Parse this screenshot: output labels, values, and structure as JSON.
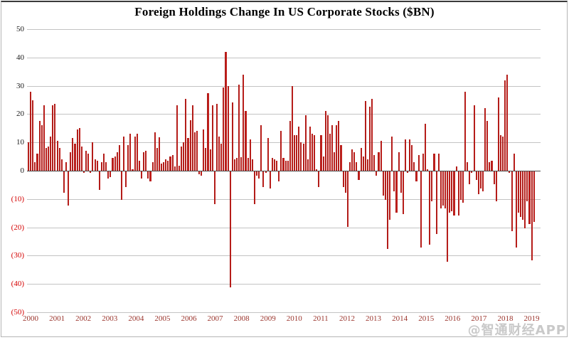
{
  "title": "Foreign Holdings Change In US Corporate Stocks ($BN)",
  "watermark": "@智通财经APP",
  "colors": {
    "bar": "#c1201d",
    "bar_edge": "#8e1310",
    "grid": "#c3c3c3",
    "zero_axis": "#4a4a4a",
    "tick_positive": "#1a1a1a",
    "tick_negative": "#d40000",
    "year_label": "#9a342c",
    "watermark": "#c4c4c4",
    "title": "#000000",
    "background": "#ffffff"
  },
  "y_axis": {
    "ticks": [
      {
        "label": "50",
        "value": 50
      },
      {
        "label": "40",
        "value": 40
      },
      {
        "label": "30",
        "value": 30
      },
      {
        "label": "20",
        "value": 20
      },
      {
        "label": "10",
        "value": 10
      },
      {
        "label": "0",
        "value": 0
      },
      {
        "label": "(10)",
        "value": -10
      },
      {
        "label": "(20)",
        "value": -20
      },
      {
        "label": "(30)",
        "value": -30
      },
      {
        "label": "(40)",
        "value": -40
      },
      {
        "label": "(50)",
        "value": -50
      }
    ]
  },
  "x_axis": {
    "years": [
      "2000",
      "2001",
      "2002",
      "2003",
      "2004",
      "2005",
      "2006",
      "2007",
      "2008",
      "2009",
      "2010",
      "2011",
      "2012",
      "2013",
      "2014",
      "2015",
      "2016",
      "2017",
      "2018",
      "2019"
    ]
  },
  "chart_data": {
    "type": "bar",
    "title": "Foreign Holdings Change In US Corporate Stocks ($BN)",
    "ylabel": "$BN",
    "xlabel": "",
    "ylim": [
      -50,
      50
    ],
    "grid": "horizontal",
    "frequency": "monthly",
    "start_month": "2000-01",
    "end_month": "2019-01",
    "negative_label_style": "parentheses-red",
    "series": [
      {
        "name": "Monthly change in foreign holdings of US corporate stocks",
        "values": [
          10,
          28,
          25,
          3,
          6,
          17.5,
          16,
          23,
          8,
          8.5,
          12,
          23,
          23.5,
          10.5,
          8,
          4,
          -7.5,
          3,
          -12,
          6.5,
          11.5,
          9.5,
          14.5,
          15,
          8.5,
          -0.5,
          7,
          6,
          -0.5,
          10,
          4,
          3.5,
          -6.5,
          3,
          6,
          3,
          -2.5,
          -2,
          4.5,
          5,
          6.5,
          9,
          -10,
          12,
          -5.5,
          9,
          13,
          0.5,
          12,
          13,
          3.5,
          -2.5,
          6.5,
          7,
          -2.5,
          -3.5,
          3,
          13.5,
          8,
          11.8,
          2.5,
          3,
          4,
          3.5,
          5,
          5.5,
          1.5,
          23,
          1.7,
          8.5,
          10,
          25.5,
          11.5,
          17.8,
          23,
          13.5,
          14,
          -1,
          -1.5,
          14.5,
          8,
          27.5,
          7.5,
          23,
          -11.5,
          23.5,
          12,
          9.5,
          29.5,
          42,
          30,
          -41,
          24,
          4,
          4.5,
          30.5,
          4.8,
          33.8,
          21,
          4.5,
          11,
          4,
          -11.5,
          -1.5,
          -2.5,
          16,
          -5.5,
          -0.5,
          11.5,
          -6,
          4.5,
          4,
          3.5,
          -3.5,
          14,
          4.5,
          3.5,
          3.4,
          17.5,
          30,
          12.5,
          12.5,
          15.5,
          10,
          9.5,
          19.5,
          4,
          15.5,
          13,
          12.5,
          0.5,
          -5.5,
          12.5,
          5,
          21,
          19.5,
          13,
          16,
          6.5,
          16,
          17.5,
          9,
          -5.5,
          -7.5,
          -19.5,
          3,
          7.5,
          6.5,
          3,
          -3,
          8,
          5,
          24.5,
          4,
          22.5,
          25.5,
          5.5,
          -1.5,
          6.5,
          10.5,
          -8.5,
          -10,
          -27.5,
          -17,
          12,
          -7,
          -14.5,
          6.5,
          -7.5,
          -15,
          11,
          -0.5,
          11,
          9,
          3,
          -3.5,
          5.5,
          -27,
          6,
          16.5,
          0.5,
          -26,
          -10.5,
          6,
          -22,
          6,
          -13,
          -12,
          -13,
          -32,
          -14.5,
          -14,
          -15.5,
          1.5,
          -15.5,
          -10,
          -11,
          28,
          3,
          -4.5,
          -0.5,
          23,
          -3,
          -8,
          -6,
          -7,
          22,
          17.5,
          3,
          3.5,
          -4.5,
          -10.5,
          26,
          12.5,
          12,
          32,
          34,
          -0.5,
          -21,
          6,
          -27,
          -14.5,
          -16,
          -17,
          -20,
          -10.5,
          -18.5,
          -31.5,
          -17.8
        ]
      }
    ]
  }
}
